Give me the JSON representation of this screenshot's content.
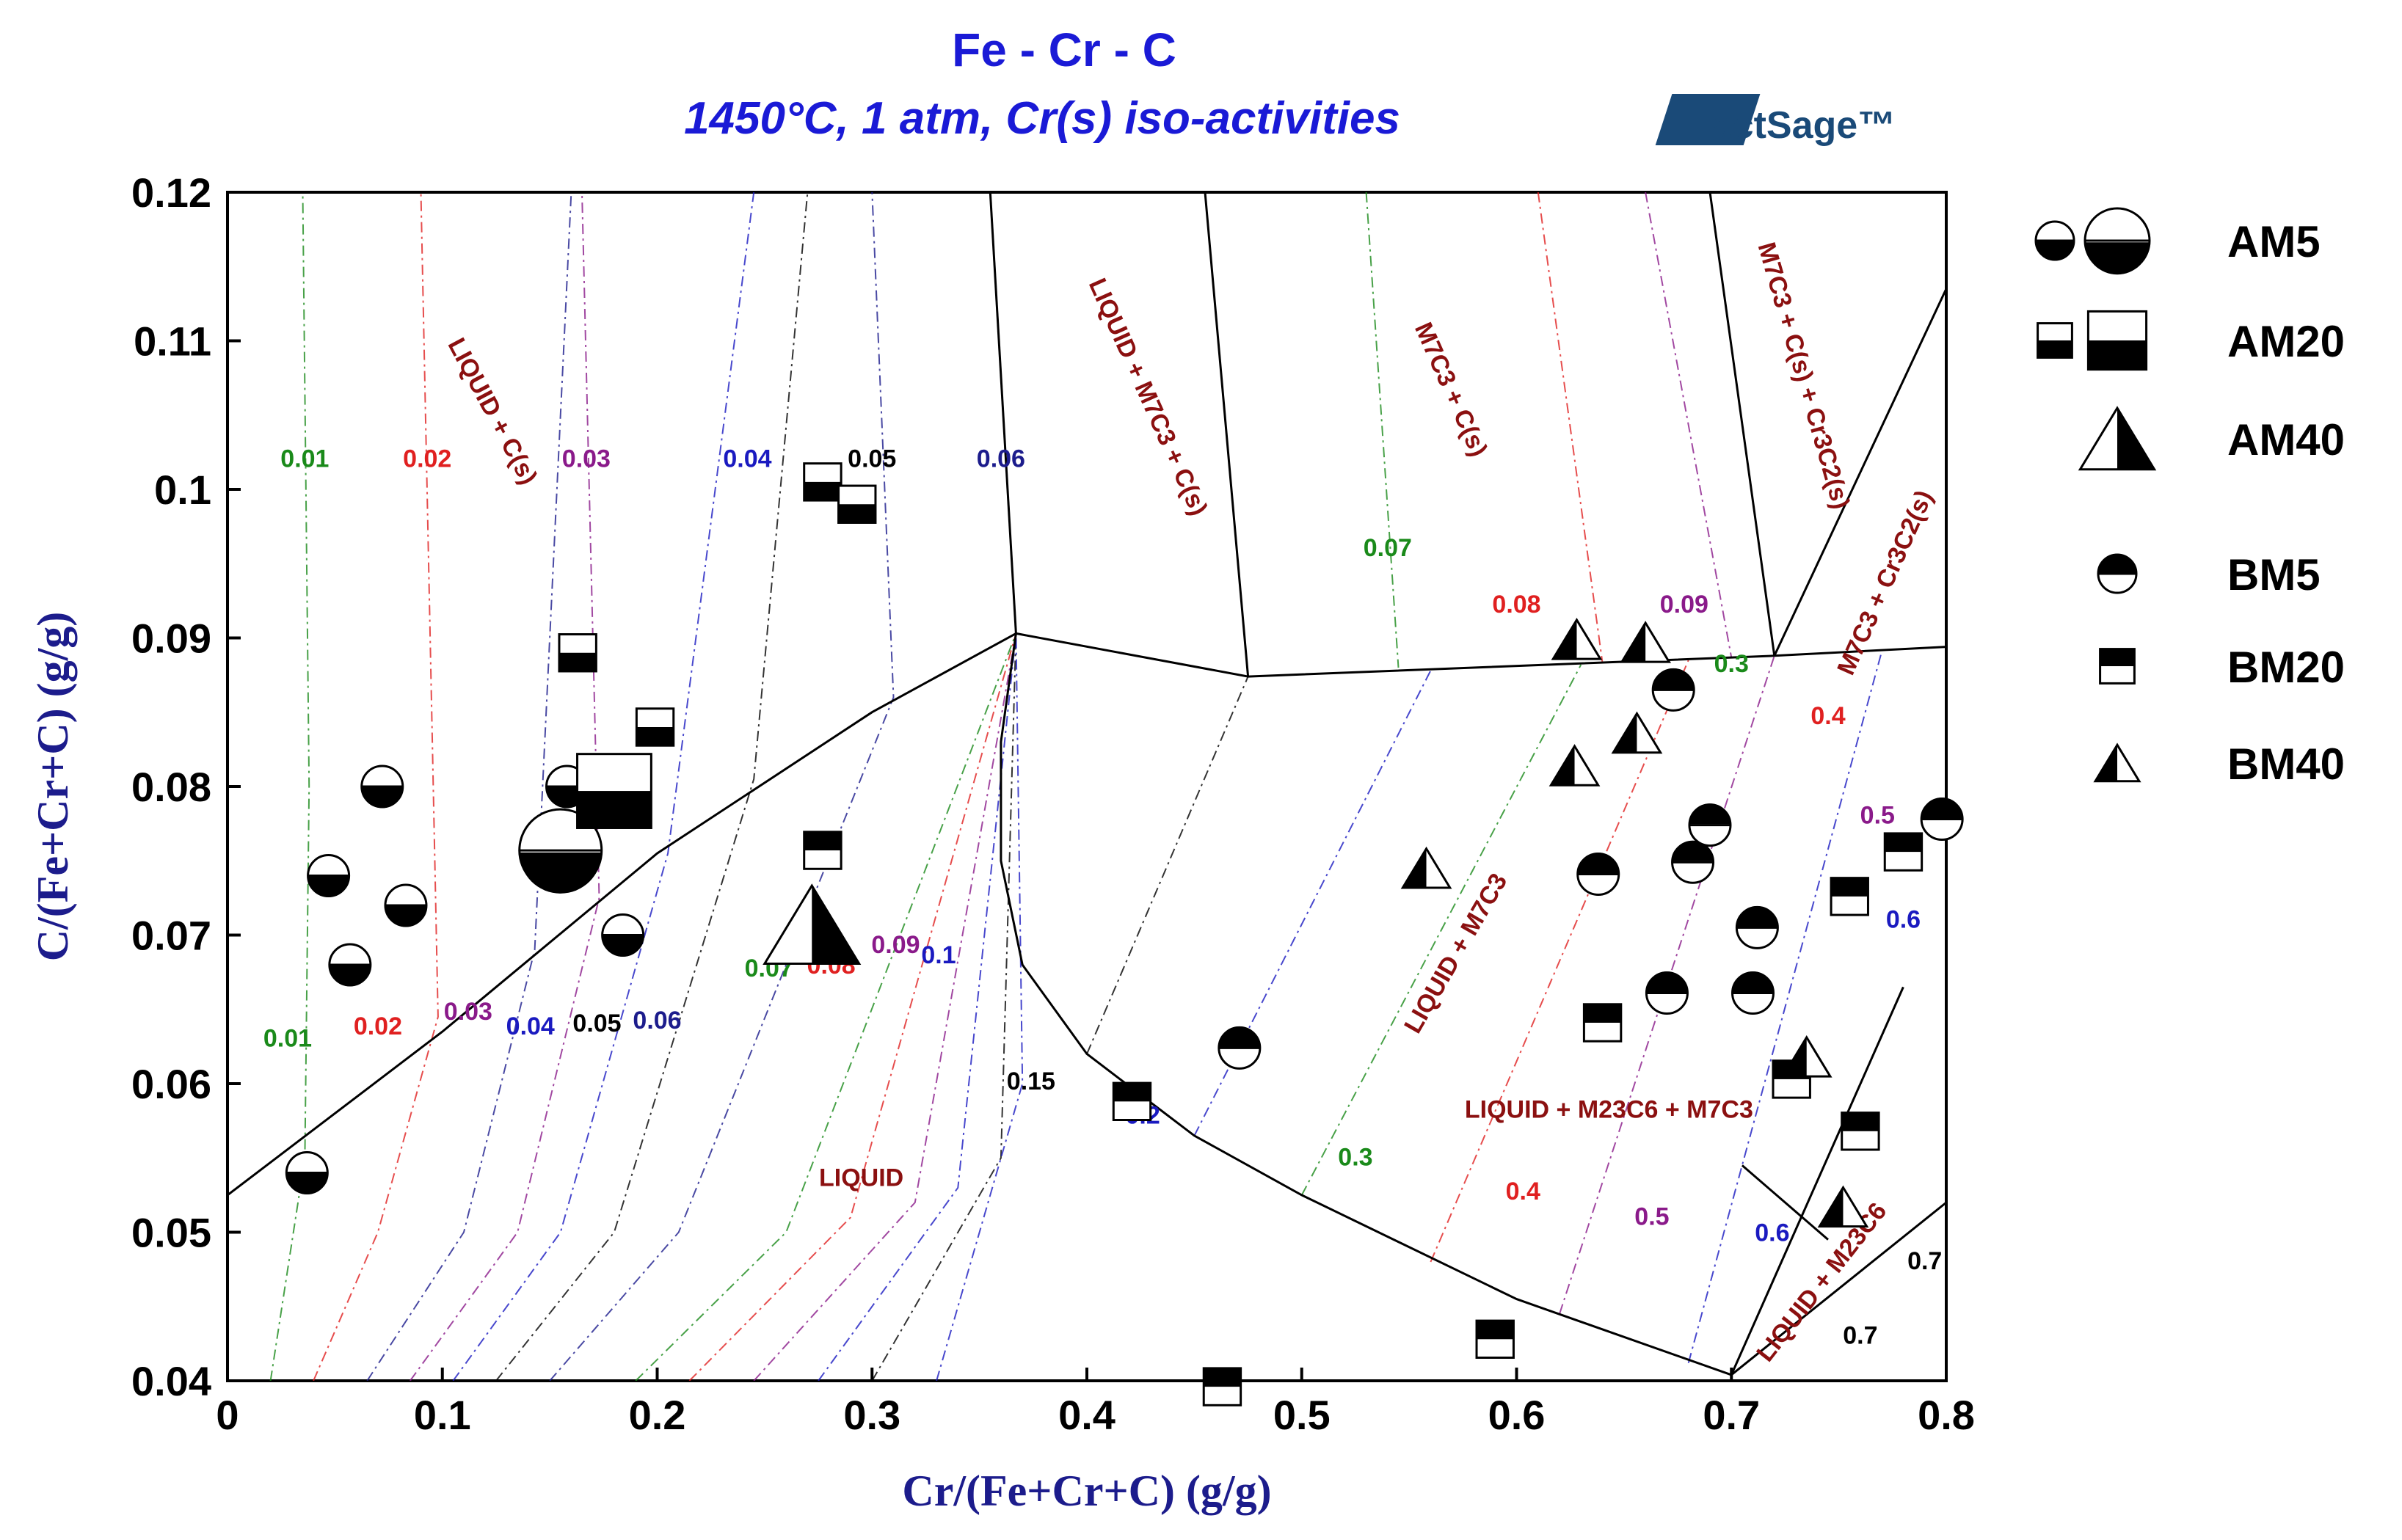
{
  "chart_data": {
    "type": "scatter",
    "title": "Fe - Cr - C",
    "subtitle": "1450°C, 1 atm, Cr(s) iso-activities",
    "logo_text": "FactSage™",
    "xlabel": "Cr/(Fe+Cr+C) (g/g)",
    "ylabel": "C/(Fe+Cr+C) (g/g)",
    "xlim": [
      0,
      0.8
    ],
    "ylim": [
      0.04,
      0.12
    ],
    "x_ticks": [
      "0",
      "0.1",
      "0.2",
      "0.3",
      "0.4",
      "0.5",
      "0.6",
      "0.7",
      "0.8"
    ],
    "y_ticks": [
      "0.04",
      "0.05",
      "0.06",
      "0.07",
      "0.08",
      "0.09",
      "0.1",
      "0.11",
      "0.12"
    ],
    "phase_regions": [
      {
        "label": "LIQUID",
        "x": 0.295,
        "y": 0.0531,
        "angle": 0
      },
      {
        "label": "LIQUID + C(s)",
        "x": 0.12,
        "y": 0.105,
        "angle": 62
      },
      {
        "label": "LIQUID + M7C3 + C(s)",
        "x": 0.425,
        "y": 0.106,
        "angle": 66
      },
      {
        "label": "M7C3 + C(s)",
        "x": 0.566,
        "y": 0.1065,
        "angle": 66
      },
      {
        "label": "M7C3 + C(s) + Cr3C2(s)",
        "x": 0.73,
        "y": 0.1075,
        "angle": 74
      },
      {
        "label": "M7C3 + Cr3C2(s)",
        "x": 0.775,
        "y": 0.0935,
        "angle": -66
      },
      {
        "label": "LIQUID + M7C3",
        "x": 0.575,
        "y": 0.0685,
        "angle": -60
      },
      {
        "label": "LIQUID + M23C6 + M7C3",
        "x": 0.643,
        "y": 0.0577,
        "angle": 0
      },
      {
        "label": "LIQUID + M23C6",
        "x": 0.745,
        "y": 0.0463,
        "angle": -52
      }
    ],
    "phase_boundaries": [
      {
        "name": "liquidus-c-side",
        "points": [
          [
            0,
            0.0525
          ],
          [
            0.1,
            0.0635
          ],
          [
            0.2,
            0.0755
          ],
          [
            0.3,
            0.085
          ],
          [
            0.367,
            0.0903
          ]
        ]
      },
      {
        "name": "liquidus-m7c3-side",
        "points": [
          [
            0.367,
            0.0903
          ],
          [
            0.36,
            0.083
          ],
          [
            0.36,
            0.075
          ],
          [
            0.37,
            0.068
          ],
          [
            0.4,
            0.062
          ],
          [
            0.45,
            0.0565
          ],
          [
            0.5,
            0.0525
          ],
          [
            0.6,
            0.0455
          ],
          [
            0.7,
            0.0404
          ]
        ]
      },
      {
        "name": "c-m7c3-upper",
        "points": [
          [
            0.367,
            0.0903
          ],
          [
            0.475,
            0.0874
          ],
          [
            0.72,
            0.0888
          ],
          [
            0.8,
            0.0894
          ]
        ]
      },
      {
        "name": "tie-1",
        "points": [
          [
            0.355,
            0.12
          ],
          [
            0.367,
            0.0903
          ]
        ]
      },
      {
        "name": "tie-2",
        "points": [
          [
            0.455,
            0.12
          ],
          [
            0.475,
            0.0874
          ]
        ]
      },
      {
        "name": "tie-3",
        "points": [
          [
            0.69,
            0.12
          ],
          [
            0.72,
            0.0888
          ]
        ]
      },
      {
        "name": "tie-4",
        "points": [
          [
            0.72,
            0.0888
          ],
          [
            0.8,
            0.1135
          ]
        ]
      },
      {
        "name": "m23c6-left",
        "points": [
          [
            0.7,
            0.0404
          ],
          [
            0.78,
            0.0665
          ]
        ]
      },
      {
        "name": "m23c6-right",
        "points": [
          [
            0.7,
            0.0404
          ],
          [
            0.8,
            0.052
          ]
        ]
      },
      {
        "name": "three-phase-pointer",
        "points": [
          [
            0.705,
            0.0545
          ],
          [
            0.745,
            0.0495
          ]
        ]
      }
    ],
    "iso_activity_labels": [
      {
        "label": "0.01",
        "x": 0.036,
        "y": 0.1015,
        "color": "#1a8a1a"
      },
      {
        "label": "0.02",
        "x": 0.093,
        "y": 0.1015,
        "color": "#e02020"
      },
      {
        "label": "0.03",
        "x": 0.167,
        "y": 0.1015,
        "color": "#8a1a8a"
      },
      {
        "label": "0.04",
        "x": 0.242,
        "y": 0.1015,
        "color": "#1a1ac0"
      },
      {
        "label": "0.05",
        "x": 0.3,
        "y": 0.1015,
        "color": "#000000"
      },
      {
        "label": "0.06",
        "x": 0.36,
        "y": 0.1015,
        "color": "#1c1c8c"
      },
      {
        "label": "0.07",
        "x": 0.54,
        "y": 0.0955,
        "color": "#1a8a1a"
      },
      {
        "label": "0.08",
        "x": 0.6,
        "y": 0.0917,
        "color": "#e02020"
      },
      {
        "label": "0.09",
        "x": 0.678,
        "y": 0.0917,
        "color": "#8a1a8a"
      },
      {
        "label": "0.3",
        "x": 0.7,
        "y": 0.0877,
        "color": "#1a8a1a"
      },
      {
        "label": "0.4",
        "x": 0.745,
        "y": 0.0842,
        "color": "#e02020"
      },
      {
        "label": "0.5",
        "x": 0.768,
        "y": 0.0775,
        "color": "#8a1a8a"
      },
      {
        "label": "0.6",
        "x": 0.78,
        "y": 0.0705,
        "color": "#1a1ac0"
      },
      {
        "label": "0.01",
        "x": 0.028,
        "y": 0.0625,
        "color": "#1a8a1a"
      },
      {
        "label": "0.02",
        "x": 0.07,
        "y": 0.0633,
        "color": "#e02020"
      },
      {
        "label": "0.03",
        "x": 0.112,
        "y": 0.0643,
        "color": "#8a1a8a"
      },
      {
        "label": "0.04",
        "x": 0.141,
        "y": 0.0633,
        "color": "#1a1ac0"
      },
      {
        "label": "0.05",
        "x": 0.172,
        "y": 0.0635,
        "color": "#000000"
      },
      {
        "label": "0.06",
        "x": 0.2,
        "y": 0.0637,
        "color": "#1c1c8c"
      },
      {
        "label": "0.07",
        "x": 0.252,
        "y": 0.0672,
        "color": "#1a8a1a"
      },
      {
        "label": "0.08",
        "x": 0.281,
        "y": 0.0674,
        "color": "#e02020"
      },
      {
        "label": "0.09",
        "x": 0.311,
        "y": 0.0688,
        "color": "#8a1a8a"
      },
      {
        "label": "0.1",
        "x": 0.331,
        "y": 0.0681,
        "color": "#1a1ac0"
      },
      {
        "label": "0.15",
        "x": 0.374,
        "y": 0.0596,
        "color": "#000000"
      },
      {
        "label": "0.2",
        "x": 0.426,
        "y": 0.0573,
        "color": "#1a1ac0"
      },
      {
        "label": "0.3",
        "x": 0.525,
        "y": 0.0545,
        "color": "#1a8a1a"
      },
      {
        "label": "0.4",
        "x": 0.603,
        "y": 0.0522,
        "color": "#e02020"
      },
      {
        "label": "0.5",
        "x": 0.663,
        "y": 0.0505,
        "color": "#8a1a8a"
      },
      {
        "label": "0.6",
        "x": 0.719,
        "y": 0.0494,
        "color": "#1a1ac0"
      },
      {
        "label": "0.7",
        "x": 0.79,
        "y": 0.0475,
        "color": "#000000"
      },
      {
        "label": "0.7",
        "x": 0.76,
        "y": 0.0425,
        "color": "#000000"
      }
    ],
    "iso_activity_lines": [
      {
        "color": "#1a8a1a",
        "points": [
          [
            0.02,
            0.04
          ],
          [
            0.036,
            0.055
          ],
          [
            0.038,
            0.08
          ],
          [
            0.035,
            0.12
          ]
        ]
      },
      {
        "color": "#e02020",
        "points": [
          [
            0.04,
            0.04
          ],
          [
            0.07,
            0.05
          ],
          [
            0.098,
            0.0645
          ],
          [
            0.09,
            0.12
          ]
        ]
      },
      {
        "color": "#1c1c8c",
        "points": [
          [
            0.065,
            0.04
          ],
          [
            0.11,
            0.05
          ],
          [
            0.143,
            0.069
          ],
          [
            0.16,
            0.12
          ]
        ]
      },
      {
        "color": "#8a1a8a",
        "points": [
          [
            0.085,
            0.04
          ],
          [
            0.135,
            0.05
          ],
          [
            0.173,
            0.0725
          ],
          [
            0.165,
            0.12
          ]
        ]
      },
      {
        "color": "#1a1ac0",
        "points": [
          [
            0.105,
            0.04
          ],
          [
            0.155,
            0.05
          ],
          [
            0.205,
            0.0755
          ],
          [
            0.245,
            0.12
          ]
        ]
      },
      {
        "color": "#000000",
        "points": [
          [
            0.125,
            0.04
          ],
          [
            0.18,
            0.05
          ],
          [
            0.245,
            0.0805
          ],
          [
            0.27,
            0.12
          ]
        ]
      },
      {
        "color": "#1c1c8c",
        "points": [
          [
            0.15,
            0.04
          ],
          [
            0.21,
            0.05
          ],
          [
            0.31,
            0.086
          ],
          [
            0.3,
            0.12
          ]
        ]
      },
      {
        "color": "#1a8a1a",
        "points": [
          [
            0.19,
            0.04
          ],
          [
            0.26,
            0.05
          ],
          [
            0.367,
            0.0903
          ]
        ]
      },
      {
        "color": "#e02020",
        "points": [
          [
            0.215,
            0.04
          ],
          [
            0.29,
            0.051
          ],
          [
            0.367,
            0.0903
          ]
        ]
      },
      {
        "color": "#8a1a8a",
        "points": [
          [
            0.245,
            0.04
          ],
          [
            0.32,
            0.052
          ],
          [
            0.367,
            0.0903
          ]
        ]
      },
      {
        "color": "#1a1ac0",
        "points": [
          [
            0.275,
            0.04
          ],
          [
            0.34,
            0.053
          ],
          [
            0.367,
            0.0903
          ]
        ]
      },
      {
        "color": "#000000",
        "points": [
          [
            0.3,
            0.04
          ],
          [
            0.36,
            0.055
          ],
          [
            0.367,
            0.0903
          ]
        ]
      },
      {
        "color": "#1a1ac0",
        "points": [
          [
            0.33,
            0.04
          ],
          [
            0.37,
            0.06
          ],
          [
            0.367,
            0.0903
          ]
        ]
      },
      {
        "color": "#000000",
        "points": [
          [
            0.4,
            0.062
          ],
          [
            0.475,
            0.0874
          ]
        ]
      },
      {
        "color": "#1a1ac0",
        "points": [
          [
            0.45,
            0.0565
          ],
          [
            0.56,
            0.0878
          ]
        ]
      },
      {
        "color": "#1a8a1a",
        "points": [
          [
            0.5,
            0.0525
          ],
          [
            0.63,
            0.0882
          ]
        ]
      },
      {
        "color": "#e02020",
        "points": [
          [
            0.56,
            0.048
          ],
          [
            0.68,
            0.0885
          ]
        ]
      },
      {
        "color": "#8a1a8a",
        "points": [
          [
            0.62,
            0.0445
          ],
          [
            0.72,
            0.0888
          ]
        ]
      },
      {
        "color": "#1a1ac0",
        "points": [
          [
            0.68,
            0.0412
          ],
          [
            0.77,
            0.0891
          ]
        ]
      },
      {
        "color": "#1a8a1a",
        "points": [
          [
            0.53,
            0.12
          ],
          [
            0.545,
            0.088
          ]
        ]
      },
      {
        "color": "#e02020",
        "points": [
          [
            0.61,
            0.12
          ],
          [
            0.64,
            0.0883
          ]
        ]
      },
      {
        "color": "#8a1a8a",
        "points": [
          [
            0.66,
            0.12
          ],
          [
            0.7,
            0.0887
          ]
        ]
      }
    ],
    "legend": [
      {
        "label": "AM5",
        "marker": "circle-lower-filled",
        "sizes": [
          "small",
          "large"
        ]
      },
      {
        "label": "AM20",
        "marker": "square-lower-filled",
        "sizes": [
          "small",
          "large"
        ]
      },
      {
        "label": "AM40",
        "marker": "triangle-right-filled",
        "sizes": [
          "large"
        ]
      },
      {
        "label": "BM5",
        "marker": "circle-upper-filled",
        "sizes": [
          "small"
        ]
      },
      {
        "label": "BM20",
        "marker": "square-upper-filled",
        "sizes": [
          "small"
        ]
      },
      {
        "label": "BM40",
        "marker": "triangle-left-filled",
        "sizes": [
          "small"
        ]
      }
    ],
    "series": [
      {
        "name": "AM5",
        "marker": "circle-lower-filled",
        "points": [
          {
            "x": 0.037,
            "y": 0.054
          },
          {
            "x": 0.047,
            "y": 0.074
          },
          {
            "x": 0.057,
            "y": 0.068
          },
          {
            "x": 0.072,
            "y": 0.08
          },
          {
            "x": 0.083,
            "y": 0.072
          },
          {
            "x": 0.158,
            "y": 0.08
          },
          {
            "x": 0.184,
            "y": 0.07
          },
          {
            "x": 0.155,
            "y": 0.0757,
            "size": "large"
          }
        ]
      },
      {
        "name": "AM20",
        "marker": "square-lower-filled",
        "points": [
          {
            "x": 0.163,
            "y": 0.089
          },
          {
            "x": 0.199,
            "y": 0.084
          },
          {
            "x": 0.277,
            "y": 0.1005
          },
          {
            "x": 0.293,
            "y": 0.099
          },
          {
            "x": 0.18,
            "y": 0.0797,
            "size": "large"
          }
        ]
      },
      {
        "name": "AM40",
        "marker": "triangle-right-filled",
        "points": [
          {
            "x": 0.272,
            "y": 0.0707,
            "size": "large"
          }
        ]
      },
      {
        "name": "BM5",
        "marker": "circle-upper-filled",
        "points": [
          {
            "x": 0.471,
            "y": 0.0624
          },
          {
            "x": 0.638,
            "y": 0.0741
          },
          {
            "x": 0.67,
            "y": 0.0661
          },
          {
            "x": 0.673,
            "y": 0.0865
          },
          {
            "x": 0.682,
            "y": 0.0749
          },
          {
            "x": 0.69,
            "y": 0.0774
          },
          {
            "x": 0.71,
            "y": 0.0661
          },
          {
            "x": 0.712,
            "y": 0.0705
          },
          {
            "x": 0.798,
            "y": 0.0778
          }
        ]
      },
      {
        "name": "BM20",
        "marker": "square-upper-filled",
        "points": [
          {
            "x": 0.421,
            "y": 0.0588
          },
          {
            "x": 0.463,
            "y": 0.0396
          },
          {
            "x": 0.277,
            "y": 0.0757
          },
          {
            "x": 0.59,
            "y": 0.0428
          },
          {
            "x": 0.64,
            "y": 0.0641
          },
          {
            "x": 0.728,
            "y": 0.0603
          },
          {
            "x": 0.755,
            "y": 0.0726
          },
          {
            "x": 0.76,
            "y": 0.0568
          },
          {
            "x": 0.78,
            "y": 0.0756
          }
        ]
      },
      {
        "name": "BM40",
        "marker": "triangle-left-filled",
        "points": [
          {
            "x": 0.558,
            "y": 0.0745
          },
          {
            "x": 0.627,
            "y": 0.0814
          },
          {
            "x": 0.628,
            "y": 0.0899
          },
          {
            "x": 0.656,
            "y": 0.0836
          },
          {
            "x": 0.66,
            "y": 0.0897
          },
          {
            "x": 0.735,
            "y": 0.0618
          },
          {
            "x": 0.752,
            "y": 0.0517
          }
        ]
      }
    ]
  }
}
